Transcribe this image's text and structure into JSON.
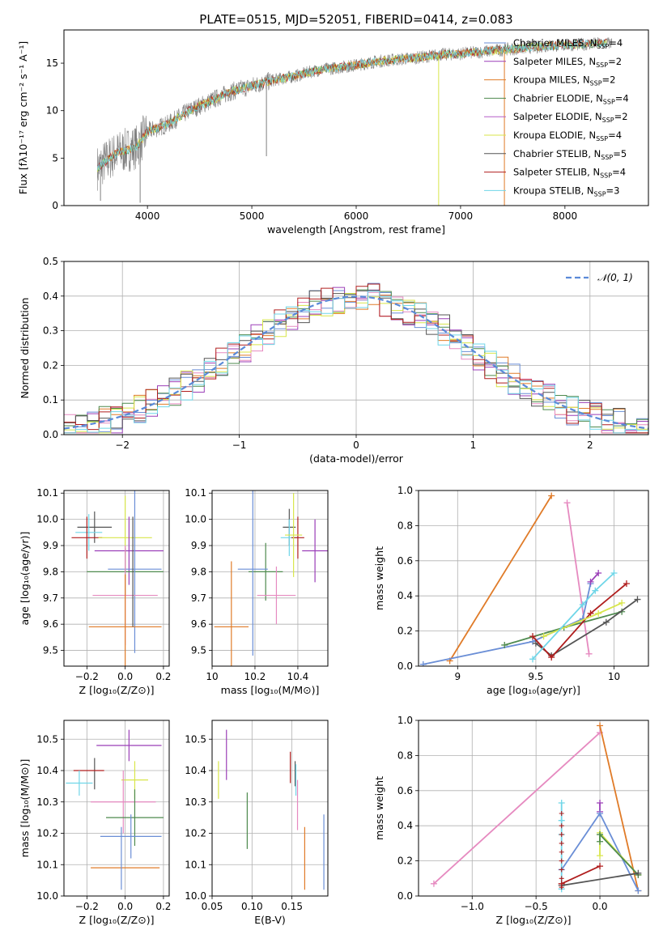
{
  "figure": {
    "title": "PLATE=0515, MJD=52051, FIBERID=0414, z=0.083"
  },
  "colors": {
    "chabrier_miles": "#6a8ed6",
    "salpeter_miles": "#9b3fb8",
    "kroupa_miles": "#e07b28",
    "chabrier_elodie": "#4e8a4e",
    "salpeter_elodie": "#b55fc7",
    "kroupa_elodie": "#d8e64a",
    "chabrier_stelib": "#555555",
    "salpeter_stelib": "#b01e1e",
    "kroupa_stelib": "#6fd6e8",
    "pink": "#e68ac0",
    "spectrum": "#808080",
    "normal_curve": "#5a8ad8",
    "grid": "#b0b0b0"
  },
  "chart_data": [
    {
      "id": "spectrum",
      "type": "line",
      "title": "PLATE=0515, MJD=52051, FIBERID=0414, z=0.083",
      "xlabel": "wavelength [Angstrom, rest frame]",
      "ylabel": "Flux [fλ10⁻¹⁷ erg cm⁻² s⁻¹ A⁻¹]",
      "xlim": [
        3200,
        8800
      ],
      "ylim": [
        0,
        18.5
      ],
      "xticks": [
        4000,
        5000,
        6000,
        7000,
        8000
      ],
      "yticks": [
        0,
        5,
        10,
        15
      ],
      "grid": false,
      "legend_position": "top-right",
      "legend": [
        {
          "label": "Chabrier MILES, N",
          "sub": "SSP",
          "suffix": "=4",
          "color": "#6a8ed6"
        },
        {
          "label": "Salpeter MILES, N",
          "sub": "SSP",
          "suffix": "=2",
          "color": "#9b3fb8"
        },
        {
          "label": "Kroupa MILES, N",
          "sub": "SSP",
          "suffix": "=2",
          "color": "#e07b28"
        },
        {
          "label": "Chabrier ELODIE, N",
          "sub": "SSP",
          "suffix": "=4",
          "color": "#4e8a4e"
        },
        {
          "label": "Salpeter ELODIE, N",
          "sub": "SSP",
          "suffix": "=2",
          "color": "#b55fc7"
        },
        {
          "label": "Kroupa ELODIE, N",
          "sub": "SSP",
          "suffix": "=4",
          "color": "#d8e64a"
        },
        {
          "label": "Chabrier STELIB, N",
          "sub": "SSP",
          "suffix": "=5",
          "color": "#555555"
        },
        {
          "label": "Salpeter STELIB, N",
          "sub": "SSP",
          "suffix": "=4",
          "color": "#b01e1e"
        },
        {
          "label": "Kroupa STELIB, N",
          "sub": "SSP",
          "suffix": "=3",
          "color": "#6fd6e8"
        }
      ],
      "continuum": {
        "x": [
          3500,
          3700,
          3900,
          4000,
          4200,
          4400,
          4600,
          4800,
          5000,
          5200,
          5400,
          5600,
          5800,
          6000,
          6200,
          6400,
          6600,
          6800,
          7000,
          7200,
          7400,
          7600,
          7800,
          8000,
          8200,
          8400
        ],
        "y": [
          3.8,
          5.5,
          6.2,
          7.8,
          8.6,
          10.0,
          11.0,
          12.0,
          12.6,
          13.2,
          13.6,
          14.2,
          14.5,
          14.8,
          15.2,
          15.4,
          15.6,
          15.9,
          16.0,
          16.2,
          16.4,
          16.6,
          16.8,
          16.9,
          17.0,
          17.1
        ]
      },
      "dips": [
        {
          "x": 3930,
          "y": 0.3
        },
        {
          "x": 5140,
          "y": 5.2
        },
        {
          "x": 6790,
          "y": 0.0
        },
        {
          "x": 7420,
          "y": 0.0
        },
        {
          "x": 3550,
          "y": 0.5
        }
      ]
    },
    {
      "id": "residuals",
      "type": "area",
      "xlabel": "(data-model)/error",
      "ylabel": "Normed distribution",
      "xlim": [
        -2.5,
        2.5
      ],
      "ylim": [
        0,
        0.5
      ],
      "xticks": [
        -2,
        -1,
        0,
        1,
        2
      ],
      "yticks": [
        0.0,
        0.1,
        0.2,
        0.3,
        0.4,
        0.5
      ],
      "grid": true,
      "legend_position": "top-right",
      "legend": [
        {
          "label": "𝒩(0, 1)",
          "color": "#5a8ad8"
        }
      ],
      "bin_width": 0.1,
      "normal": {
        "mu": 0,
        "sigma": 1
      }
    },
    {
      "id": "age_vs_z",
      "type": "scatter",
      "xlabel": "Z [log₁₀(Z/Z⊙)]",
      "ylabel": "age  [log₁₀(age/yr)]",
      "xlim": [
        -0.32,
        0.23
      ],
      "ylim": [
        9.44,
        10.11
      ],
      "xticks": [
        -0.2,
        0.0,
        0.2
      ],
      "yticks": [
        9.5,
        9.6,
        9.7,
        9.8,
        9.9,
        10.0,
        10.1
      ],
      "grid": true,
      "points": [
        {
          "x": -0.16,
          "xerr": 0.09,
          "y": 9.97,
          "yerr": 0.06,
          "color": "#555555"
        },
        {
          "x": -0.19,
          "xerr": 0.07,
          "y": 9.95,
          "yerr": 0.07,
          "color": "#6fd6e8"
        },
        {
          "x": -0.2,
          "xerr": 0.08,
          "y": 9.93,
          "yerr": 0.08,
          "color": "#b01e1e"
        },
        {
          "x": 0.0,
          "xerr": 0.14,
          "y": 9.93,
          "yerr": 0.16,
          "color": "#d8e64a"
        },
        {
          "x": 0.02,
          "xerr": 0.18,
          "y": 9.88,
          "yerr": 0.13,
          "color": "#9b3fb8"
        },
        {
          "x": 0.0,
          "xerr": 0.2,
          "y": 9.8,
          "yerr": 0.09,
          "color": "#4e8a4e"
        },
        {
          "x": 0.05,
          "xerr": 0.14,
          "y": 9.81,
          "yerr": 0.32,
          "color": "#6a8ed6"
        },
        {
          "x": 0.0,
          "xerr": 0.17,
          "y": 9.71,
          "yerr": 0.19,
          "color": "#e68ac0"
        },
        {
          "x": 0.0,
          "xerr": 0.19,
          "y": 9.59,
          "yerr": 0.2,
          "color": "#e07b28"
        },
        {
          "x": 0.04,
          "xerr": 0.0,
          "y": 9.8,
          "yerr": 0.21,
          "color": "#555555"
        }
      ]
    },
    {
      "id": "age_vs_mass",
      "type": "scatter",
      "xlabel": "mass [log₁₀(M/M⊙)]",
      "ylabel": "",
      "xlim": [
        10.0,
        10.54
      ],
      "ylim": [
        9.44,
        10.11
      ],
      "xticks": [
        10.0,
        10.2,
        10.4
      ],
      "yticks": [
        9.5,
        9.6,
        9.7,
        9.8,
        9.9,
        10.0,
        10.1
      ],
      "grid": true,
      "points": [
        {
          "x": 10.36,
          "xerr": 0.03,
          "y": 9.97,
          "yerr": 0.07,
          "color": "#555555"
        },
        {
          "x": 10.36,
          "xerr": 0.04,
          "y": 9.93,
          "yerr": 0.07,
          "color": "#6fd6e8"
        },
        {
          "x": 10.4,
          "xerr": 0.03,
          "y": 9.93,
          "yerr": 0.08,
          "color": "#b01e1e"
        },
        {
          "x": 10.38,
          "xerr": 0.04,
          "y": 9.94,
          "yerr": 0.16,
          "color": "#d8e64a"
        },
        {
          "x": 10.48,
          "xerr": 0.06,
          "y": 9.88,
          "yerr": 0.12,
          "color": "#9b3fb8"
        },
        {
          "x": 10.25,
          "xerr": 0.08,
          "y": 9.8,
          "yerr": 0.11,
          "color": "#4e8a4e"
        },
        {
          "x": 10.19,
          "xerr": 0.07,
          "y": 9.81,
          "yerr": 0.33,
          "color": "#6a8ed6"
        },
        {
          "x": 10.3,
          "xerr": 0.09,
          "y": 9.71,
          "yerr": 0.11,
          "color": "#e68ac0"
        },
        {
          "x": 10.09,
          "xerr": 0.08,
          "y": 9.59,
          "yerr": 0.25,
          "color": "#e07b28"
        }
      ]
    },
    {
      "id": "massweight_vs_age",
      "type": "line",
      "xlabel": "age  [log₁₀(age/yr)]",
      "ylabel": "mass weight",
      "xlim": [
        8.75,
        10.22
      ],
      "ylim": [
        0,
        1.0
      ],
      "xticks": [
        9.0,
        9.5,
        10.0
      ],
      "yticks": [
        0.0,
        0.2,
        0.4,
        0.6,
        0.8,
        1.0
      ],
      "grid": true,
      "series": [
        {
          "color": "#e07b28",
          "x": [
            8.95,
            9.6
          ],
          "y": [
            0.03,
            0.97
          ]
        },
        {
          "color": "#e68ac0",
          "x": [
            9.7,
            9.84
          ],
          "y": [
            0.93,
            0.07
          ]
        },
        {
          "color": "#6a8ed6",
          "x": [
            8.78,
            9.48,
            9.8,
            9.85
          ],
          "y": [
            0.01,
            0.14,
            0.27,
            0.47
          ]
        },
        {
          "color": "#9b3fb8",
          "x": [
            9.85,
            9.9
          ],
          "y": [
            0.48,
            0.53
          ]
        },
        {
          "color": "#4e8a4e",
          "x": [
            9.3,
            9.68,
            10.05
          ],
          "y": [
            0.12,
            0.22,
            0.31
          ]
        },
        {
          "color": "#555555",
          "x": [
            9.5,
            9.6,
            9.95,
            10.15
          ],
          "y": [
            0.13,
            0.06,
            0.25,
            0.38
          ]
        },
        {
          "color": "#b01e1e",
          "x": [
            9.48,
            9.6,
            9.85,
            10.08
          ],
          "y": [
            0.17,
            0.05,
            0.3,
            0.47
          ]
        },
        {
          "color": "#d8e64a",
          "x": [
            9.55,
            9.9,
            10.05
          ],
          "y": [
            0.17,
            0.3,
            0.36
          ]
        },
        {
          "color": "#6fd6e8",
          "x": [
            9.48,
            9.8,
            9.88,
            10.0
          ],
          "y": [
            0.04,
            0.35,
            0.43,
            0.53
          ]
        }
      ]
    },
    {
      "id": "mass_vs_z",
      "type": "scatter",
      "xlabel": "Z [log₁₀(Z/Z⊙)]",
      "ylabel": "mass [log₁₀(M/M⊙)]",
      "xlim": [
        -0.32,
        0.23
      ],
      "ylim": [
        10.0,
        10.56
      ],
      "xticks": [
        -0.2,
        0.0,
        0.2
      ],
      "yticks": [
        10.0,
        10.1,
        10.2,
        10.3,
        10.4,
        10.5
      ],
      "grid": true,
      "points": [
        {
          "x": 0.02,
          "xerr": 0.17,
          "y": 10.48,
          "yerr": 0.05,
          "color": "#9b3fb8"
        },
        {
          "x": -0.16,
          "xerr": 0.0,
          "y": 10.39,
          "yerr": 0.05,
          "color": "#555555"
        },
        {
          "x": -0.19,
          "xerr": 0.08,
          "y": 10.4,
          "yerr": 0.0,
          "color": "#b01e1e"
        },
        {
          "x": 0.05,
          "xerr": 0.07,
          "y": 10.37,
          "yerr": 0.06,
          "color": "#d8e64a"
        },
        {
          "x": -0.24,
          "xerr": 0.07,
          "y": 10.36,
          "yerr": 0.04,
          "color": "#6fd6e8"
        },
        {
          "x": -0.01,
          "xerr": 0.17,
          "y": 10.3,
          "yerr": 0.1,
          "color": "#e68ac0"
        },
        {
          "x": 0.05,
          "xerr": 0.15,
          "y": 10.25,
          "yerr": 0.09,
          "color": "#4e8a4e"
        },
        {
          "x": 0.03,
          "xerr": 0.16,
          "y": 10.19,
          "yerr": 0.07,
          "color": "#6a8ed6"
        },
        {
          "x": 0.0,
          "xerr": 0.18,
          "y": 10.09,
          "yerr": 0.0,
          "color": "#e07b28"
        },
        {
          "x": -0.02,
          "xerr": 0.0,
          "y": 10.12,
          "yerr": 0.1,
          "color": "#6a8ed6"
        }
      ]
    },
    {
      "id": "mass_vs_ebv",
      "type": "scatter",
      "xlabel": "E(B-V)",
      "ylabel": "",
      "xlim": [
        0.05,
        0.195
      ],
      "ylim": [
        10.0,
        10.56
      ],
      "xticks": [
        0.05,
        0.1,
        0.15
      ],
      "xticklabels": [
        "0.05",
        "0.10",
        "0.15"
      ],
      "yticks": [
        10.0,
        10.1,
        10.2,
        10.3,
        10.4,
        10.5
      ],
      "grid": true,
      "points": [
        {
          "x": 0.068,
          "y": 10.45,
          "yerr": 0.08,
          "color": "#9b3fb8"
        },
        {
          "x": 0.058,
          "y": 10.37,
          "yerr": 0.06,
          "color": "#d8e64a"
        },
        {
          "x": 0.094,
          "y": 10.24,
          "yerr": 0.09,
          "color": "#4e8a4e"
        },
        {
          "x": 0.148,
          "y": 10.41,
          "yerr": 0.05,
          "color": "#b01e1e"
        },
        {
          "x": 0.154,
          "y": 10.39,
          "yerr": 0.04,
          "color": "#555555"
        },
        {
          "x": 0.155,
          "y": 10.37,
          "yerr": 0.05,
          "color": "#6fd6e8"
        },
        {
          "x": 0.157,
          "y": 10.29,
          "yerr": 0.08,
          "color": "#e68ac0"
        },
        {
          "x": 0.166,
          "y": 10.12,
          "yerr": 0.1,
          "color": "#e07b28"
        },
        {
          "x": 0.19,
          "y": 10.14,
          "yerr": 0.12,
          "color": "#6a8ed6"
        }
      ]
    },
    {
      "id": "massweight_vs_z",
      "type": "line",
      "xlabel": "Z [log₁₀(Z/Z⊙)]",
      "ylabel": "mass weight",
      "xlim": [
        -1.42,
        0.38
      ],
      "ylim": [
        0,
        1.0
      ],
      "xticks": [
        -1.0,
        -0.5,
        0.0
      ],
      "yticks": [
        0.0,
        0.2,
        0.4,
        0.6,
        0.8,
        1.0
      ],
      "grid": true,
      "series": [
        {
          "color": "#e68ac0",
          "x": [
            -1.3,
            0.0
          ],
          "y": [
            0.07,
            0.93
          ]
        },
        {
          "color": "#e07b28",
          "x": [
            0.0,
            0.3
          ],
          "y": [
            0.97,
            0.03
          ]
        },
        {
          "color": "#9b3fb8",
          "x": [
            0.0,
            0.0
          ],
          "y": [
            0.48,
            0.53
          ]
        },
        {
          "color": "#6a8ed6",
          "x": [
            -0.3,
            0.0,
            0.3
          ],
          "y": [
            0.15,
            0.47,
            0.03
          ]
        },
        {
          "color": "#6fd6e8",
          "x": [
            -0.3,
            -0.3,
            -0.3,
            -0.3
          ],
          "y": [
            0.04,
            0.35,
            0.43,
            0.53
          ]
        },
        {
          "color": "#d8e64a",
          "x": [
            0.0,
            0.0,
            0.3
          ],
          "y": [
            0.23,
            0.36,
            0.12
          ]
        },
        {
          "color": "#4e8a4e",
          "x": [
            0.0,
            0.0,
            0.3
          ],
          "y": [
            0.31,
            0.35,
            0.12
          ]
        },
        {
          "color": "#555555",
          "x": [
            -0.3,
            0.3
          ],
          "y": [
            0.06,
            0.13
          ]
        },
        {
          "color": "#b01e1e",
          "x": [
            -0.3,
            0.0
          ],
          "y": [
            0.07,
            0.17
          ]
        }
      ],
      "ticks_column": {
        "x": -0.3,
        "y": [
          0.05,
          0.1,
          0.15,
          0.2,
          0.25,
          0.3,
          0.35,
          0.4,
          0.47
        ],
        "color": "#b01e1e"
      }
    }
  ]
}
